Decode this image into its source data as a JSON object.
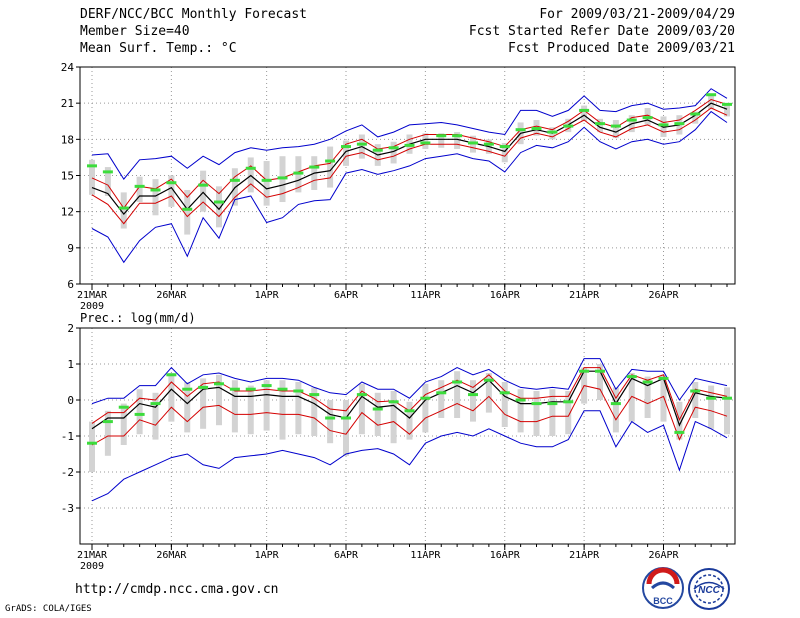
{
  "header": {
    "left": [
      "DERF/NCC/BCC Monthly Forecast",
      "Member Size=40",
      "Mean Surf. Temp.: °C"
    ],
    "right": [
      "For 2009/03/21-2009/04/29",
      "Fcst Started Refer Date 2009/03/20",
      "Fcst Produced Date 2009/03/21"
    ]
  },
  "footer": {
    "url": "http://cmdp.ncc.cma.gov.cn",
    "credit": "GrADS: COLA/IGES"
  },
  "logos": {
    "bcc": "BCC",
    "ncc": "NCC"
  },
  "colors": {
    "mean": "#000000",
    "spread": "#d40000",
    "extreme": "#0000cc",
    "obs": "#3cdc3c",
    "box": "#d3d3d3"
  },
  "chart_data": [
    {
      "type": "line",
      "title": "Mean Surf. Temp.: °C",
      "ylabel": "",
      "ylim": [
        6,
        24
      ],
      "yticks": [
        "6",
        "9",
        "12",
        "15",
        "18",
        "21",
        "24"
      ],
      "xticks": [
        {
          "day": 0,
          "label": "21MAR",
          "sub": "2009"
        },
        {
          "day": 5,
          "label": "26MAR"
        },
        {
          "day": 11,
          "label": "1APR"
        },
        {
          "day": 16,
          "label": "6APR"
        },
        {
          "day": 21,
          "label": "11APR"
        },
        {
          "day": 26,
          "label": "16APR"
        },
        {
          "day": 31,
          "label": "21APR"
        },
        {
          "day": 36,
          "label": "26APR"
        }
      ],
      "days": 40,
      "series": [
        {
          "name": "mean",
          "values": [
            14.0,
            13.5,
            11.8,
            13.3,
            13.3,
            14.0,
            12.2,
            13.6,
            12.2,
            14.0,
            15.0,
            13.9,
            14.2,
            14.6,
            15.2,
            15.4,
            17.0,
            17.4,
            16.7,
            17.0,
            17.6,
            18.0,
            18.0,
            18.0,
            17.7,
            17.4,
            17.0,
            18.5,
            18.8,
            18.5,
            19.2,
            20.0,
            19.0,
            18.6,
            19.3,
            19.6,
            19.0,
            19.2,
            20.0,
            21.0,
            20.5
          ]
        },
        {
          "name": "upper",
          "values": [
            14.8,
            14.2,
            12.3,
            14.1,
            13.9,
            14.7,
            13.2,
            14.6,
            13.5,
            14.9,
            15.8,
            14.6,
            14.8,
            15.3,
            15.8,
            16.0,
            17.6,
            18.0,
            17.2,
            17.4,
            18.0,
            18.4,
            18.4,
            18.4,
            18.1,
            17.8,
            17.4,
            18.8,
            19.1,
            18.8,
            19.5,
            20.4,
            19.4,
            19.0,
            19.8,
            20.0,
            19.4,
            19.6,
            20.4,
            21.3,
            20.9
          ]
        },
        {
          "name": "lower",
          "values": [
            13.4,
            12.6,
            11.0,
            12.7,
            12.7,
            13.3,
            11.6,
            12.8,
            11.6,
            13.2,
            14.3,
            13.2,
            13.5,
            14.0,
            14.6,
            14.8,
            16.6,
            16.9,
            16.3,
            16.6,
            17.2,
            17.6,
            17.6,
            17.6,
            17.3,
            17.0,
            16.6,
            18.1,
            18.5,
            18.2,
            18.9,
            19.6,
            18.6,
            18.2,
            18.9,
            19.2,
            18.6,
            18.8,
            19.6,
            20.6,
            20.0
          ]
        },
        {
          "name": "max",
          "values": [
            16.7,
            16.8,
            14.7,
            16.3,
            16.4,
            16.6,
            15.6,
            16.6,
            15.9,
            16.9,
            17.3,
            17.1,
            17.3,
            17.4,
            17.6,
            18.0,
            18.7,
            19.2,
            18.2,
            18.6,
            19.2,
            19.3,
            19.4,
            19.2,
            18.9,
            18.6,
            18.4,
            20.4,
            20.4,
            19.9,
            20.4,
            21.6,
            20.4,
            20.3,
            20.8,
            21.0,
            20.5,
            20.6,
            20.8,
            22.2,
            21.4
          ]
        },
        {
          "name": "min",
          "values": [
            10.6,
            9.9,
            7.8,
            9.6,
            10.7,
            11.0,
            8.3,
            11.5,
            9.8,
            13.0,
            13.3,
            11.1,
            11.5,
            12.6,
            12.9,
            13.0,
            15.2,
            15.5,
            15.1,
            15.4,
            15.8,
            16.4,
            16.6,
            16.8,
            16.4,
            16.2,
            15.3,
            16.9,
            17.5,
            17.3,
            17.8,
            19.0,
            17.8,
            17.2,
            17.8,
            18.0,
            17.6,
            17.8,
            18.8,
            20.3,
            19.4
          ]
        },
        {
          "name": "obs",
          "values": [
            15.8,
            15.3,
            12.3,
            14.1,
            13.8,
            14.4,
            12.2,
            14.2,
            12.8,
            14.6,
            15.6,
            14.6,
            14.8,
            15.2,
            15.7,
            16.2,
            17.4,
            17.6,
            17.1,
            17.3,
            17.5,
            17.7,
            18.3,
            18.3,
            17.7,
            17.6,
            17.4,
            18.8,
            18.9,
            18.6,
            19.1,
            20.4,
            19.3,
            19.1,
            19.6,
            19.8,
            19.2,
            19.3,
            20.1,
            21.7,
            20.9
          ]
        },
        {
          "name": "box_hi",
          "values": [
            16.3,
            15.7,
            13.6,
            14.9,
            14.7,
            15.0,
            13.8,
            15.4,
            14.1,
            15.6,
            16.5,
            16.2,
            16.6,
            16.6,
            16.6,
            17.4,
            17.9,
            18.4,
            17.6,
            17.8,
            18.4,
            18.5,
            18.5,
            18.6,
            18.3,
            18.0,
            17.7,
            19.4,
            19.6,
            19.0,
            19.7,
            20.8,
            19.7,
            19.6,
            20.0,
            20.6,
            19.9,
            20.0,
            20.3,
            21.6,
            20.9
          ]
        },
        {
          "name": "box_lo",
          "values": [
            13.4,
            13.3,
            10.6,
            12.8,
            11.7,
            12.4,
            10.1,
            12.0,
            10.7,
            12.5,
            13.6,
            12.5,
            12.8,
            13.6,
            13.8,
            14.0,
            15.8,
            16.4,
            15.8,
            16.0,
            16.8,
            17.2,
            17.3,
            17.2,
            16.9,
            16.8,
            16.1,
            17.6,
            18.3,
            18.0,
            18.6,
            19.5,
            18.6,
            18.1,
            18.6,
            19.2,
            18.2,
            18.4,
            19.3,
            20.5,
            19.9
          ]
        }
      ]
    },
    {
      "type": "line",
      "title": "Prec.: log(mm/d)",
      "ylabel": "",
      "ylim": [
        -4,
        2
      ],
      "yticks": [
        "-3",
        "-2",
        "-1",
        "0",
        "1",
        "2"
      ],
      "xticks": [
        {
          "day": 0,
          "label": "21MAR",
          "sub": "2009"
        },
        {
          "day": 5,
          "label": "26MAR"
        },
        {
          "day": 11,
          "label": "1APR"
        },
        {
          "day": 16,
          "label": "6APR"
        },
        {
          "day": 21,
          "label": "11APR"
        },
        {
          "day": 26,
          "label": "16APR"
        },
        {
          "day": 31,
          "label": "21APR"
        },
        {
          "day": 36,
          "label": "26APR"
        }
      ],
      "days": 40,
      "series": [
        {
          "name": "mean",
          "values": [
            -0.8,
            -0.5,
            -0.5,
            -0.1,
            -0.2,
            0.3,
            -0.1,
            0.3,
            0.35,
            0.1,
            0.1,
            0.15,
            0.1,
            0.1,
            -0.1,
            -0.4,
            -0.5,
            0.1,
            -0.2,
            -0.15,
            -0.5,
            0.0,
            0.2,
            0.4,
            0.2,
            0.55,
            0.1,
            -0.1,
            -0.1,
            -0.05,
            -0.05,
            0.8,
            0.8,
            -0.1,
            0.6,
            0.4,
            0.6,
            -0.7,
            0.2,
            0.1,
            0.05
          ]
        },
        {
          "name": "upper",
          "values": [
            -0.65,
            -0.35,
            -0.35,
            0.05,
            0.0,
            0.5,
            0.1,
            0.45,
            0.5,
            0.25,
            0.25,
            0.3,
            0.25,
            0.25,
            0.05,
            -0.25,
            -0.3,
            0.25,
            -0.05,
            -0.02,
            -0.3,
            0.15,
            0.35,
            0.55,
            0.35,
            0.7,
            0.25,
            0.05,
            0.05,
            0.1,
            0.1,
            0.9,
            0.9,
            0.05,
            0.7,
            0.55,
            0.7,
            -0.55,
            0.3,
            0.2,
            0.1
          ]
        },
        {
          "name": "lower",
          "values": [
            -1.25,
            -1.0,
            -1.0,
            -0.55,
            -0.7,
            -0.2,
            -0.6,
            -0.2,
            -0.15,
            -0.4,
            -0.4,
            -0.35,
            -0.4,
            -0.4,
            -0.5,
            -0.85,
            -0.95,
            -0.35,
            -0.7,
            -0.6,
            -0.95,
            -0.5,
            -0.3,
            -0.1,
            -0.3,
            0.1,
            -0.4,
            -0.6,
            -0.6,
            -0.45,
            -0.45,
            0.4,
            0.3,
            -0.55,
            0.1,
            -0.1,
            0.1,
            -1.1,
            -0.2,
            -0.3,
            -0.45
          ]
        },
        {
          "name": "max",
          "values": [
            -0.1,
            0.05,
            0.05,
            0.4,
            0.4,
            0.9,
            0.45,
            0.7,
            0.75,
            0.6,
            0.5,
            0.6,
            0.6,
            0.55,
            0.35,
            0.2,
            0.15,
            0.5,
            0.3,
            0.3,
            0.05,
            0.5,
            0.65,
            0.9,
            0.7,
            0.85,
            0.55,
            0.35,
            0.3,
            0.35,
            0.3,
            1.15,
            1.15,
            0.3,
            0.85,
            0.8,
            0.8,
            0.0,
            0.6,
            0.5,
            0.4
          ]
        },
        {
          "name": "min",
          "values": [
            -2.8,
            -2.6,
            -2.2,
            -2.0,
            -1.8,
            -1.6,
            -1.5,
            -1.8,
            -1.9,
            -1.6,
            -1.55,
            -1.5,
            -1.4,
            -1.5,
            -1.6,
            -1.8,
            -1.5,
            -1.4,
            -1.35,
            -1.5,
            -1.8,
            -1.2,
            -1.0,
            -0.9,
            -1.0,
            -0.8,
            -1.0,
            -1.2,
            -1.3,
            -1.3,
            -1.1,
            -0.3,
            -0.3,
            -1.3,
            -0.6,
            -0.9,
            -0.7,
            -1.95,
            -0.6,
            -0.8,
            -1.05
          ]
        },
        {
          "name": "obs",
          "values": [
            -1.2,
            -0.6,
            -0.2,
            -0.4,
            -0.1,
            0.7,
            0.3,
            0.35,
            0.45,
            0.3,
            0.3,
            0.4,
            0.3,
            0.25,
            0.15,
            -0.5,
            -0.5,
            0.15,
            -0.25,
            -0.05,
            -0.3,
            0.05,
            0.2,
            0.5,
            0.15,
            0.55,
            0.2,
            0.0,
            -0.1,
            -0.1,
            -0.05,
            0.8,
            0.8,
            -0.1,
            0.65,
            0.5,
            0.6,
            -0.9,
            0.25,
            0.05,
            0.05
          ]
        },
        {
          "name": "box_hi",
          "values": [
            -0.6,
            -0.3,
            -0.1,
            0.3,
            0.2,
            0.75,
            0.5,
            0.6,
            0.7,
            0.55,
            0.4,
            0.55,
            0.55,
            0.5,
            0.35,
            0.0,
            0.0,
            0.45,
            0.2,
            0.25,
            -0.05,
            0.45,
            0.55,
            0.8,
            0.55,
            0.75,
            0.5,
            0.3,
            0.25,
            0.3,
            0.25,
            0.9,
            1.0,
            0.35,
            0.75,
            0.65,
            0.7,
            -0.05,
            0.5,
            0.4,
            0.35
          ]
        },
        {
          "name": "box_lo",
          "values": [
            -2.0,
            -1.55,
            -1.25,
            -0.95,
            -1.1,
            -0.6,
            -0.9,
            -0.8,
            -0.7,
            -0.9,
            -0.95,
            -0.85,
            -1.1,
            -0.95,
            -1.0,
            -1.2,
            -1.55,
            -0.95,
            -1.0,
            -1.2,
            -1.1,
            -0.9,
            -0.5,
            -0.5,
            -0.6,
            -0.35,
            -0.75,
            -0.9,
            -1.0,
            -1.0,
            -0.95,
            -0.1,
            0.0,
            -0.9,
            -0.6,
            -0.5,
            -0.6,
            -1.1,
            -0.5,
            -0.8,
            -0.95
          ]
        }
      ]
    }
  ]
}
